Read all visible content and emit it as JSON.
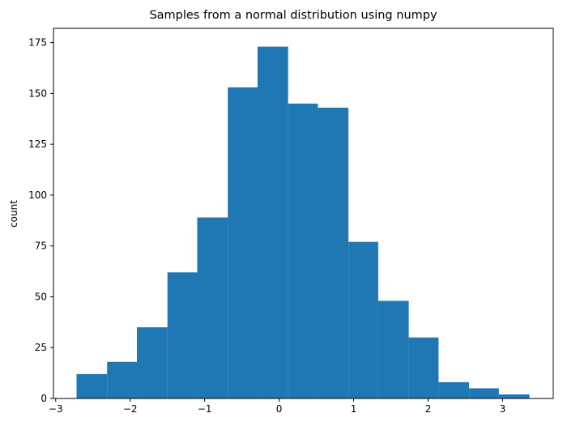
{
  "chart_data": {
    "type": "bar",
    "title": "Samples from a normal distribution using numpy",
    "xlabel": "",
    "ylabel": "count",
    "xlim": [
      -3.03,
      3.68
    ],
    "ylim": [
      0,
      182
    ],
    "x_ticks": [
      -3,
      -2,
      -1,
      0,
      1,
      2,
      3
    ],
    "x_tick_labels": [
      "−3",
      "−2",
      "−1",
      "0",
      "1",
      "2",
      "3"
    ],
    "y_ticks": [
      0,
      25,
      50,
      75,
      100,
      125,
      150,
      175
    ],
    "y_tick_labels": [
      "0",
      "25",
      "50",
      "75",
      "100",
      "125",
      "150",
      "175"
    ],
    "bin_edges": [
      -2.72,
      -2.31,
      -1.91,
      -1.5,
      -1.1,
      -0.69,
      -0.29,
      0.12,
      0.52,
      0.93,
      1.33,
      1.74,
      2.14,
      2.55,
      2.95,
      3.36
    ],
    "values": [
      12,
      18,
      35,
      62,
      89,
      153,
      173,
      145,
      143,
      77,
      48,
      30,
      8,
      5,
      2
    ],
    "bar_color": "#1f77b4",
    "grid": false,
    "legend": false
  }
}
